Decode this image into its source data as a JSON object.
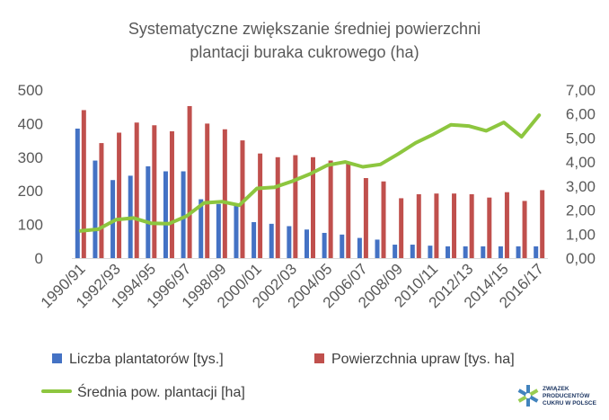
{
  "chart_data": {
    "type": "bar",
    "title": [
      "Systematyczne zwiększanie średniej powierzchni",
      "plantacji buraka cukrowego (ha)"
    ],
    "categories": [
      "1990/91",
      "1991/92",
      "1992/93",
      "1993/94",
      "1994/95",
      "1995/96",
      "1996/97",
      "1997/98",
      "1998/99",
      "1999/00",
      "2000/01",
      "2001/02",
      "2002/03",
      "2003/04",
      "2004/05",
      "2005/06",
      "2006/07",
      "2007/08",
      "2008/09",
      "2009/10",
      "2010/11",
      "2011/12",
      "2012/13",
      "2013/14",
      "2014/15",
      "2015/16",
      "2016/17"
    ],
    "xtick_labels": [
      "1990/91",
      "1992/93",
      "1994/95",
      "1996/97",
      "1998/99",
      "2000/01",
      "2002/03",
      "2004/05",
      "2006/07",
      "2008/09",
      "2010/11",
      "2012/13",
      "2014/15",
      "2016/17"
    ],
    "ylim_left": [
      0,
      500
    ],
    "yticks_left": [
      "0",
      "100",
      "200",
      "300",
      "400",
      "500"
    ],
    "ylim_right": [
      0,
      7
    ],
    "yticks_right": [
      "0,00",
      "1,00",
      "2,00",
      "3,00",
      "4,00",
      "5,00",
      "6,00",
      "7,00"
    ],
    "grid": false,
    "legend_position": "bottom",
    "series": [
      {
        "name": "Liczba plantatorów [tys.]",
        "kind": "bar",
        "axis": "left",
        "color": "#4472c4",
        "values": [
          385,
          290,
          232,
          245,
          273,
          258,
          258,
          175,
          161,
          157,
          107,
          102,
          95,
          85,
          75,
          70,
          60,
          55,
          40,
          40,
          37,
          35,
          35,
          35,
          35,
          35,
          35
        ]
      },
      {
        "name": "Powierzchnia upraw [tys. ha]",
        "kind": "bar",
        "axis": "left",
        "color": "#c0504d",
        "values": [
          440,
          342,
          373,
          403,
          395,
          377,
          452,
          400,
          383,
          350,
          311,
          300,
          306,
          300,
          290,
          283,
          238,
          228,
          178,
          190,
          192,
          192,
          190,
          180,
          196,
          170,
          202
        ]
      },
      {
        "name": "Średnia pow. plantacji [ha]",
        "kind": "line",
        "axis": "right",
        "color": "#8dc63f",
        "values": [
          1.13,
          1.2,
          1.6,
          1.67,
          1.45,
          1.43,
          1.75,
          2.3,
          2.35,
          2.2,
          2.9,
          2.95,
          3.2,
          3.5,
          3.87,
          4.0,
          3.8,
          3.9,
          4.33,
          4.8,
          5.15,
          5.55,
          5.5,
          5.3,
          5.65,
          5.05,
          5.95
        ]
      }
    ]
  },
  "logo": {
    "lines": [
      "ZWIĄZEK",
      "PRODUCENTÓW",
      "CUKRU W POLSCE"
    ],
    "colors": [
      "#2e75b6",
      "#8dc63f",
      "#1f3864"
    ]
  }
}
